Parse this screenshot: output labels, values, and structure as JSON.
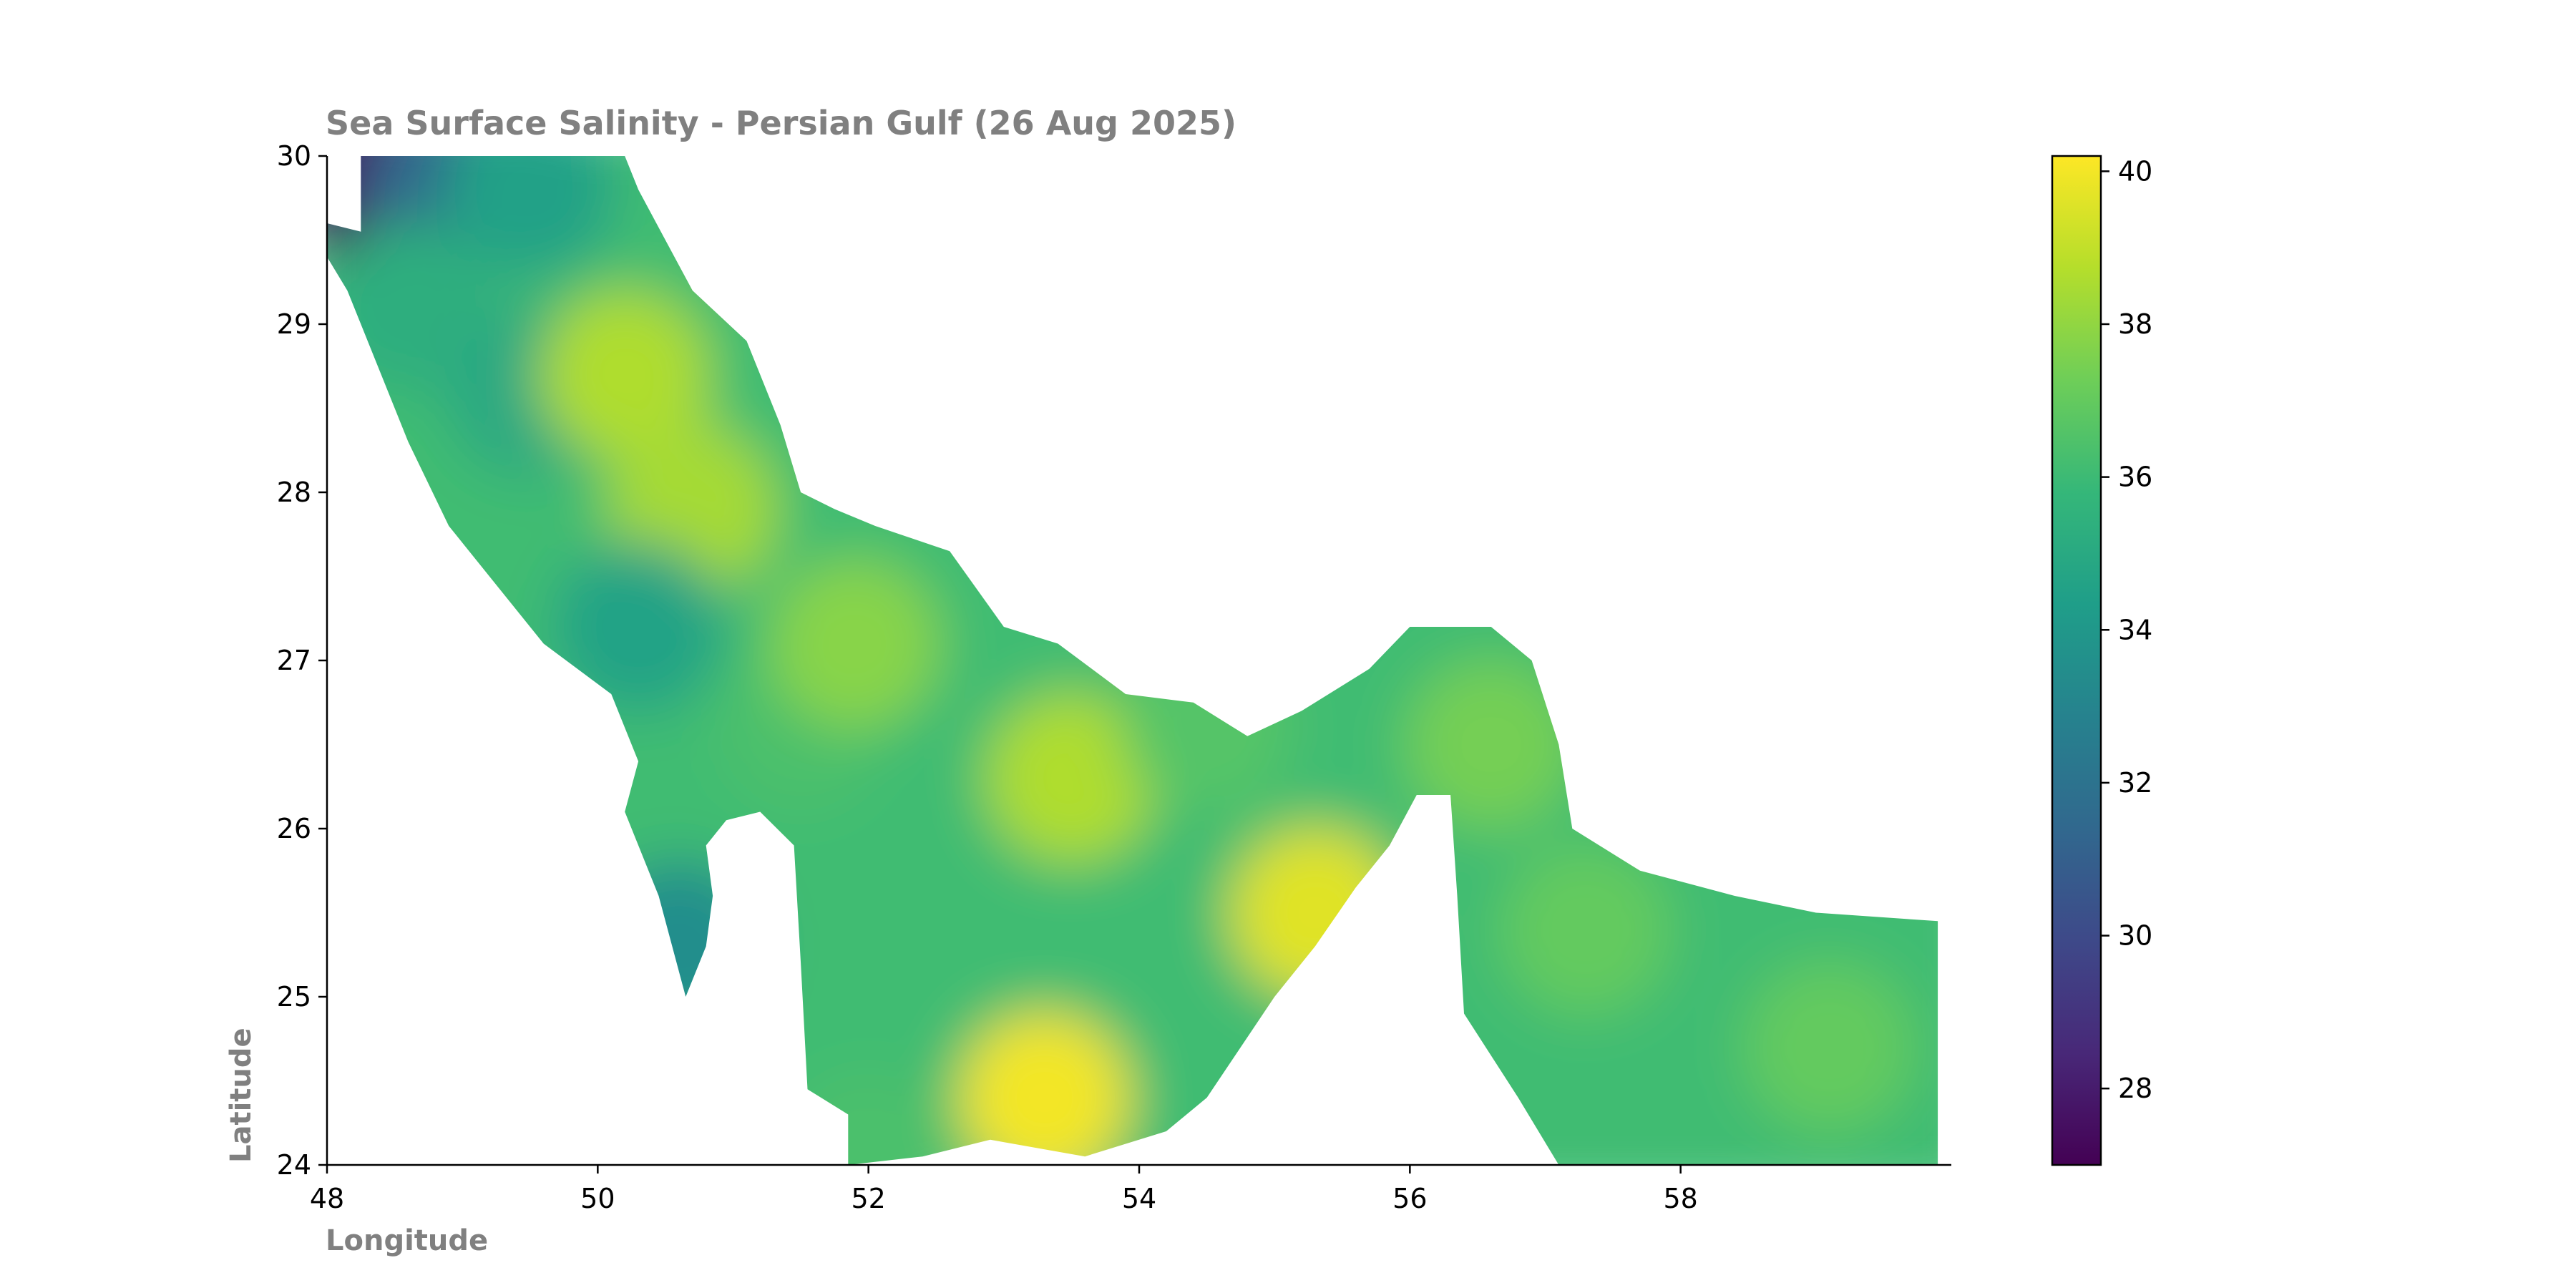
{
  "chart_data": {
    "type": "heatmap",
    "title": "Sea Surface Salinity - Persian Gulf (26 Aug 2025)",
    "xlabel": "Longitude",
    "ylabel": "Latitude",
    "xlim": [
      48,
      60
    ],
    "ylim": [
      24,
      30
    ],
    "x_ticks": [
      48,
      50,
      52,
      54,
      56,
      58
    ],
    "y_ticks": [
      24,
      25,
      26,
      27,
      28,
      29,
      30
    ],
    "colorbar": {
      "colormap": "viridis",
      "range": [
        27,
        40.2
      ],
      "ticks": [
        28,
        30,
        32,
        34,
        36,
        38,
        40
      ]
    },
    "grid": false,
    "regions": [
      {
        "lon": 48.3,
        "lat": 29.85,
        "salinity": 27.5
      },
      {
        "lon": 48.9,
        "lat": 29.8,
        "salinity": 31.5
      },
      {
        "lon": 49.5,
        "lat": 29.8,
        "salinity": 34.5
      },
      {
        "lon": 48.6,
        "lat": 29.1,
        "salinity": 35.3
      },
      {
        "lon": 49.5,
        "lat": 28.6,
        "salinity": 35.0
      },
      {
        "lon": 50.2,
        "lat": 28.7,
        "salinity": 38.6
      },
      {
        "lon": 50.7,
        "lat": 27.9,
        "salinity": 38.4
      },
      {
        "lon": 50.3,
        "lat": 27.2,
        "salinity": 34.6
      },
      {
        "lon": 51.5,
        "lat": 26.6,
        "salinity": 36.4
      },
      {
        "lon": 50.6,
        "lat": 25.3,
        "salinity": 33.5
      },
      {
        "lon": 51.9,
        "lat": 27.1,
        "salinity": 37.8
      },
      {
        "lon": 53.5,
        "lat": 26.3,
        "salinity": 38.6
      },
      {
        "lon": 53.3,
        "lat": 24.4,
        "salinity": 40.0
      },
      {
        "lon": 55.3,
        "lat": 25.5,
        "salinity": 39.6
      },
      {
        "lon": 54.5,
        "lat": 26.6,
        "salinity": 36.6
      },
      {
        "lon": 56.6,
        "lat": 26.5,
        "salinity": 37.4
      },
      {
        "lon": 57.3,
        "lat": 25.4,
        "salinity": 37.0
      },
      {
        "lon": 59.1,
        "lat": 24.7,
        "salinity": 37.0
      },
      {
        "lon": 52.0,
        "lat": 24.05,
        "salinity": 36.4
      }
    ]
  }
}
